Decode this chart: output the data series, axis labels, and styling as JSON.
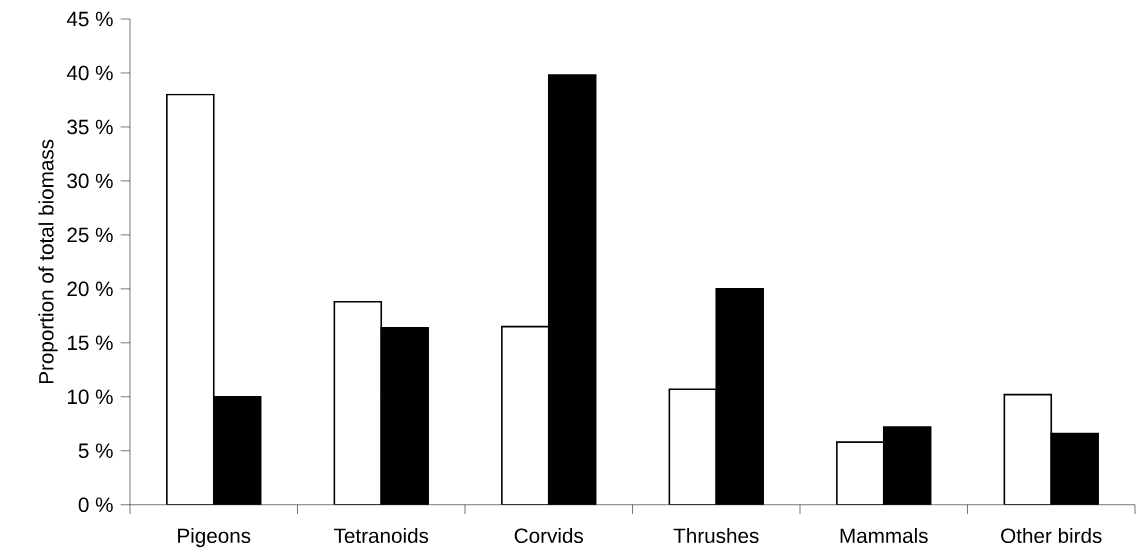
{
  "chart_data": {
    "type": "bar",
    "ylabel": "Proportion of total biomass",
    "categories": [
      "Pigeons",
      "Tetranoids",
      "Corvids",
      "Thrushes",
      "Mammals",
      "Other birds"
    ],
    "series": [
      {
        "color": "#ffffff",
        "values": [
          38.0,
          18.8,
          16.5,
          10.7,
          5.8,
          10.2
        ]
      },
      {
        "color": "#000000",
        "values": [
          10.0,
          16.4,
          39.8,
          20.0,
          7.2,
          6.6
        ]
      }
    ],
    "ylim": [
      0,
      45
    ],
    "yticks": [
      {
        "value": 0,
        "label": "0 %"
      },
      {
        "value": 5,
        "label": "5 %"
      },
      {
        "value": 10,
        "label": "10 %"
      },
      {
        "value": 15,
        "label": "15 %"
      },
      {
        "value": 20,
        "label": "20 %"
      },
      {
        "value": 25,
        "label": "25 %"
      },
      {
        "value": 30,
        "label": "30 %"
      },
      {
        "value": 35,
        "label": "35 %"
      },
      {
        "value": 40,
        "label": "40 %"
      },
      {
        "value": 45,
        "label": "45 %"
      }
    ],
    "grid": false
  }
}
